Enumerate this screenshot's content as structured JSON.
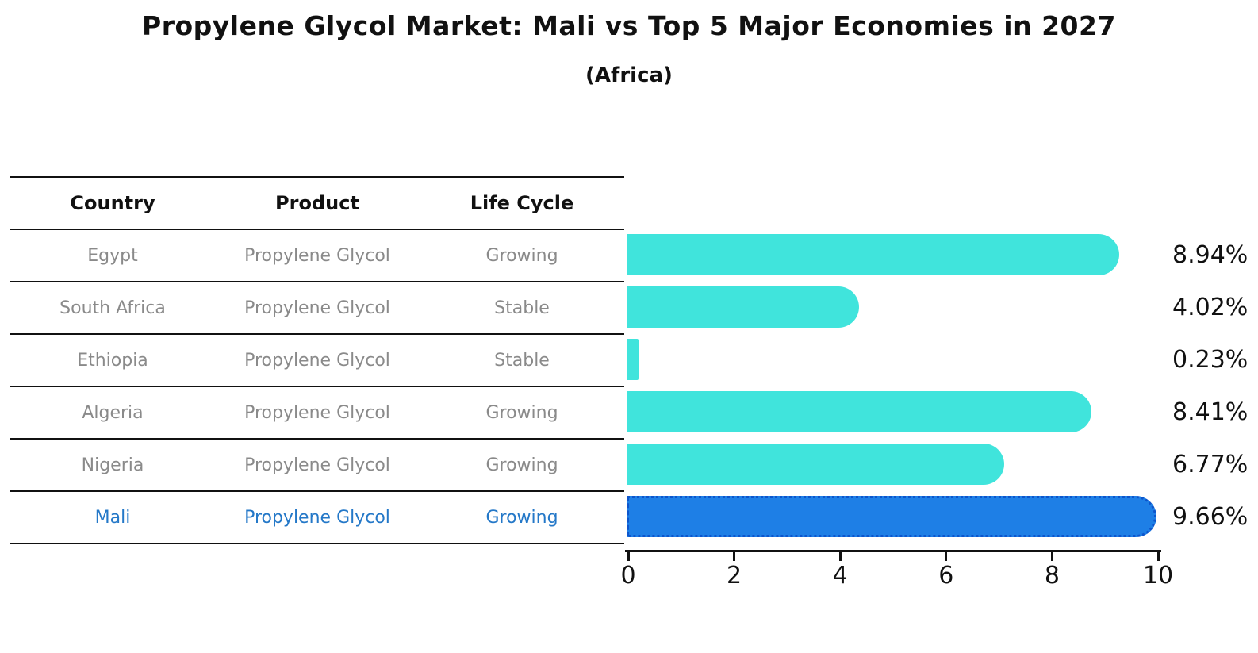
{
  "title": "Propylene Glycol Market: Mali vs Top 5 Major Economies in 2027",
  "subtitle": "(Africa)",
  "table": {
    "headers": [
      "Country",
      "Product",
      "Life Cycle"
    ],
    "rows": [
      {
        "country": "Egypt",
        "product": "Propylene Glycol",
        "life_cycle": "Growing",
        "highlight": false
      },
      {
        "country": "South Africa",
        "product": "Propylene Glycol",
        "life_cycle": "Stable",
        "highlight": false
      },
      {
        "country": "Ethiopia",
        "product": "Propylene Glycol",
        "life_cycle": "Stable",
        "highlight": false
      },
      {
        "country": "Algeria",
        "product": "Propylene Glycol",
        "life_cycle": "Growing",
        "highlight": false
      },
      {
        "country": "Nigeria",
        "product": "Propylene Glycol",
        "life_cycle": "Growing",
        "highlight": false
      },
      {
        "country": "Mali",
        "product": "Propylene Glycol",
        "life_cycle": "Growing",
        "highlight": true
      }
    ]
  },
  "chart_data": {
    "type": "bar",
    "orientation": "horizontal",
    "title": "Propylene Glycol Market: Mali vs Top 5 Major Economies in 2027",
    "subtitle": "(Africa)",
    "categories": [
      "Egypt",
      "South Africa",
      "Ethiopia",
      "Algeria",
      "Nigeria",
      "Mali"
    ],
    "values": [
      8.94,
      4.02,
      0.23,
      8.41,
      6.77,
      9.66
    ],
    "value_labels": [
      "8.94%",
      "4.02%",
      "0.23%",
      "8.41%",
      "6.77%",
      "9.66%"
    ],
    "x_ticks": [
      0,
      2,
      4,
      6,
      8,
      10
    ],
    "xlim": [
      0,
      10
    ],
    "grid": false,
    "legend": "none",
    "highlight_index": 5,
    "bar_color": "#40E4DC",
    "highlight_bar_color": "#1E7FE6",
    "highlight_border_color": "#0D55CC"
  },
  "colors": {
    "title_text": "#111111",
    "header_text": "#111111",
    "row_text": "#8A8A8A",
    "highlight_text": "#2478C8",
    "axis": "#111111"
  }
}
